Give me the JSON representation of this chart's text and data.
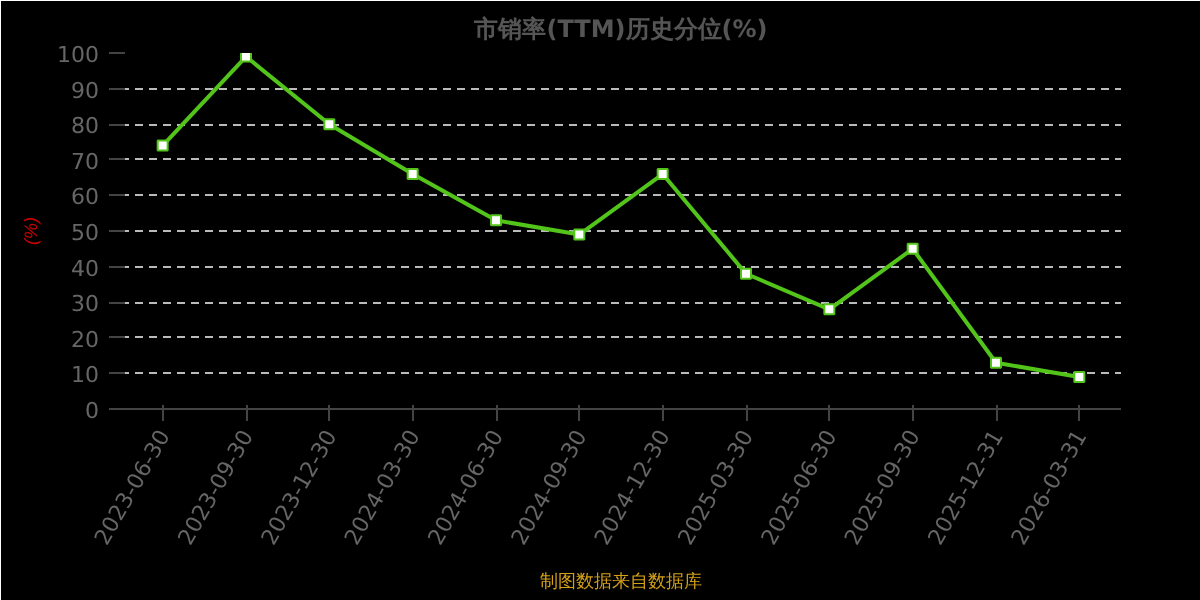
{
  "chart_data": {
    "type": "line",
    "title": "市销率(TTM)历史分位(%)",
    "ylabel": "(%)",
    "categories": [
      "2023-06-30",
      "2023-09-30",
      "2023-12-30",
      "2024-03-30",
      "2024-06-30",
      "2024-09-30",
      "2024-12-30",
      "2025-03-30",
      "2025-06-30",
      "2025-09-30",
      "2025-12-31",
      "2026-03-31"
    ],
    "series": [
      {
        "color": "#52c41a",
        "values": [
          74,
          99,
          80,
          66,
          53,
          49,
          66,
          38,
          28,
          45,
          13,
          9
        ]
      }
    ],
    "ylim": [
      0,
      100
    ],
    "yticks": [
      0,
      10,
      20,
      30,
      40,
      50,
      60,
      70,
      80,
      90,
      100
    ],
    "grid": "y",
    "marker": "square",
    "line_style": "solid",
    "annotations": [
      "制图数据来自数据库"
    ]
  }
}
